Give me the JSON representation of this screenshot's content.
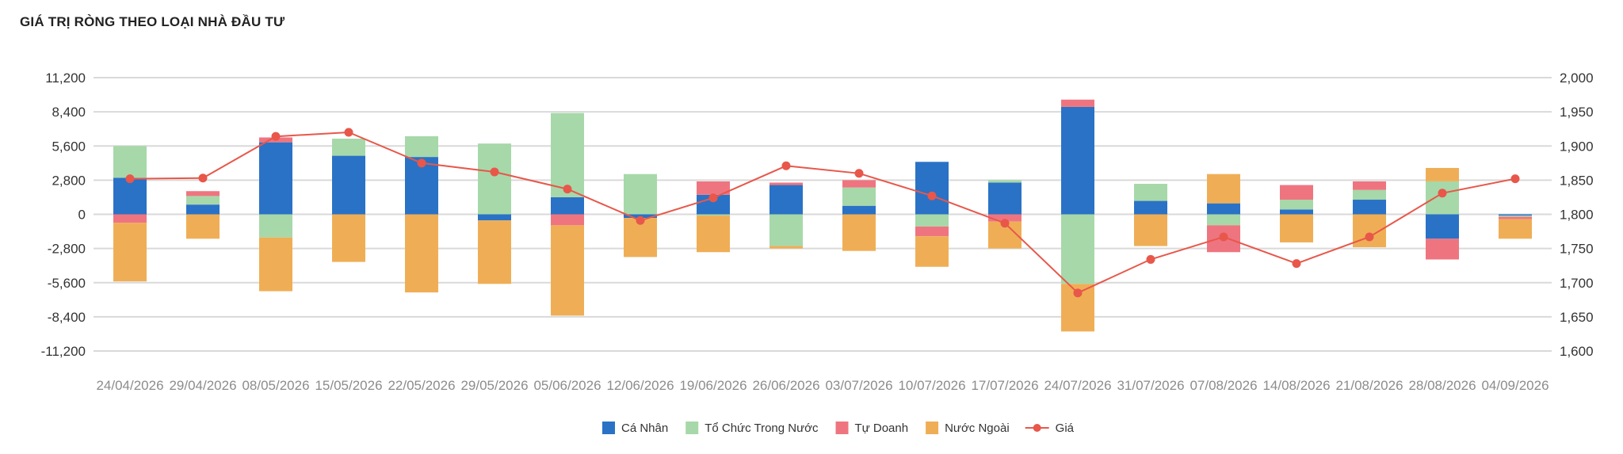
{
  "chart_data": {
    "type": "bar",
    "stacked": true,
    "title": "GIÁ TRỊ RÒNG THEO LOẠI NHÀ ĐẦU TƯ",
    "categories": [
      "24/04/2026",
      "29/04/2026",
      "08/05/2026",
      "15/05/2026",
      "22/05/2026",
      "29/05/2026",
      "05/06/2026",
      "12/06/2026",
      "19/06/2026",
      "26/06/2026",
      "03/07/2026",
      "10/07/2026",
      "17/07/2026",
      "24/07/2026",
      "31/07/2026",
      "07/08/2026",
      "14/08/2026",
      "21/08/2026",
      "28/08/2026",
      "04/09/2026"
    ],
    "series": [
      {
        "name": "Cá Nhân",
        "color": "#2a72c6",
        "values": [
          3000,
          800,
          5900,
          4800,
          4700,
          -500,
          1400,
          -300,
          1600,
          2400,
          700,
          4300,
          2600,
          8800,
          1100,
          900,
          400,
          1200,
          -2000,
          -100
        ]
      },
      {
        "name": "Tổ Chức Trong Nước",
        "color": "#a7d8a9",
        "values": [
          2600,
          700,
          -1900,
          1400,
          1700,
          5800,
          6900,
          3300,
          -100,
          -2600,
          1500,
          -1000,
          200,
          -5700,
          1400,
          -900,
          800,
          800,
          2700,
          -100
        ]
      },
      {
        "name": "Tự Doanh",
        "color": "#ee7580",
        "values": [
          -700,
          400,
          400,
          0,
          0,
          0,
          -900,
          0,
          1100,
          200,
          600,
          -800,
          -600,
          600,
          0,
          -2200,
          1200,
          700,
          -1700,
          -200
        ]
      },
      {
        "name": "Nước Ngoài",
        "color": "#efae56",
        "values": [
          -4800,
          -2000,
          -4400,
          -3900,
          -6400,
          -5200,
          -7400,
          -3200,
          -3000,
          -200,
          -3000,
          -2500,
          -2200,
          -3900,
          -2600,
          2400,
          -2300,
          -2700,
          1100,
          -1600
        ]
      },
      {
        "name": "Giá",
        "type": "line",
        "color": "#e8574a",
        "axis": "right",
        "values": [
          1852,
          1853,
          1914,
          1920,
          1875,
          1862,
          1837,
          1791,
          1824,
          1871,
          1860,
          1827,
          1787,
          1685,
          1734,
          1767,
          1728,
          1767,
          1831,
          1852
        ]
      }
    ],
    "yleft": {
      "ticks": [
        11200,
        8400,
        5600,
        2800,
        0,
        -2800,
        -5600,
        -8400,
        -11200
      ],
      "tick_labels": [
        "11,200",
        "8,400",
        "5,600",
        "2,800",
        "0",
        "-2,800",
        "-5,600",
        "-8,400",
        "-11,200"
      ],
      "range": [
        -11200,
        11200
      ]
    },
    "yright": {
      "ticks": [
        2000,
        1950,
        1900,
        1850,
        1800,
        1750,
        1700,
        1650,
        1600
      ],
      "tick_labels": [
        "2,000",
        "1,950",
        "1,900",
        "1,850",
        "1,800",
        "1,750",
        "1,700",
        "1,650",
        "1,600"
      ],
      "range": [
        1600,
        2000
      ]
    },
    "grid": true,
    "legend": "bottom-center"
  }
}
